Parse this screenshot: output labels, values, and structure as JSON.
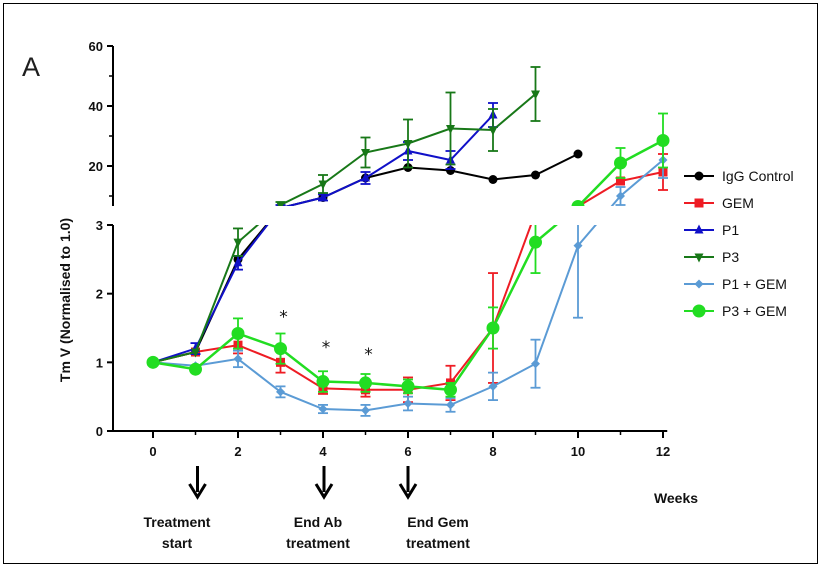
{
  "panel_label": "A",
  "chart_data": {
    "type": "line",
    "ylabel": "Tm V (Normalised to 1.0)",
    "x_unit_label": "Weeks",
    "x_ticks": [
      0,
      2,
      4,
      6,
      8,
      10,
      12
    ],
    "xlim": [
      -1,
      12.2
    ],
    "y_lower_axis": {
      "range": [
        0,
        3
      ],
      "ticks": [
        0,
        1,
        2,
        3
      ]
    },
    "y_upper_axis": {
      "range": [
        3,
        60
      ],
      "ticks": [
        20,
        40,
        60
      ]
    },
    "broken_y_axis": true,
    "legend_position": "right",
    "significance_markers": [
      {
        "x": 3,
        "y": 1.7,
        "label": "*"
      },
      {
        "x": 4,
        "y": 1.25,
        "label": "*"
      },
      {
        "x": 5,
        "y": 1.15,
        "label": "*"
      }
    ],
    "annotations": [
      {
        "x": 1,
        "lines": [
          "Treatment",
          "start"
        ]
      },
      {
        "x": 4,
        "lines": [
          "End Ab",
          "treatment"
        ]
      },
      {
        "x": 6,
        "lines": [
          "End Gem",
          "treatment"
        ]
      }
    ],
    "series": [
      {
        "name": "IgG Control",
        "color": "#000000",
        "marker": "circle",
        "x": [
          0,
          1,
          2,
          3,
          4,
          5,
          6,
          7,
          8,
          9,
          10
        ],
        "y": [
          1.0,
          1.15,
          2.5,
          6,
          9.5,
          16,
          19.5,
          18.5,
          15.5,
          17,
          24
        ],
        "err": [
          0,
          0,
          0,
          0,
          0,
          0,
          0,
          0,
          0,
          0,
          0
        ]
      },
      {
        "name": "GEM",
        "color": "#ee1c24",
        "marker": "square",
        "x": [
          0,
          1,
          2,
          3,
          4,
          5,
          6,
          7,
          8,
          9,
          10,
          11,
          12
        ],
        "y": [
          1.0,
          1.15,
          1.25,
          1.0,
          0.62,
          0.6,
          0.6,
          0.7,
          1.5,
          4.5,
          6.5,
          15,
          18
        ],
        "err": [
          0,
          0,
          0.12,
          0.15,
          0.08,
          0.1,
          0.18,
          0.25,
          0.8,
          0.7,
          0,
          0,
          6
        ]
      },
      {
        "name": "P1",
        "color": "#1010c8",
        "marker": "triangle-up",
        "x": [
          0,
          1,
          2,
          3,
          4,
          5,
          6,
          7,
          8
        ],
        "y": [
          1.0,
          1.2,
          2.45,
          6,
          9.5,
          16,
          25,
          22,
          37
        ],
        "err": [
          0,
          0.08,
          0.1,
          1,
          1,
          2,
          3,
          3,
          4
        ]
      },
      {
        "name": "P3",
        "color": "#187818",
        "marker": "triangle-down",
        "x": [
          0,
          1,
          2,
          3,
          4,
          5,
          6,
          7,
          8,
          9
        ],
        "y": [
          1.0,
          1.15,
          2.75,
          7,
          14,
          24.5,
          27.5,
          32.5,
          32,
          44
        ],
        "err": [
          0,
          0,
          0.2,
          1,
          3,
          5,
          8,
          12,
          7,
          9
        ]
      },
      {
        "name": "P1 + GEM",
        "color": "#5b9bd5",
        "marker": "diamond",
        "x": [
          0,
          1,
          2,
          3,
          4,
          5,
          6,
          7,
          8,
          9,
          10,
          11,
          12
        ],
        "y": [
          1.0,
          0.95,
          1.05,
          0.57,
          0.32,
          0.3,
          0.4,
          0.38,
          0.65,
          0.98,
          2.7,
          10,
          22
        ],
        "err": [
          0,
          0,
          0.12,
          0.08,
          0.06,
          0.08,
          0.1,
          0.1,
          0.2,
          0.35,
          1.05,
          3,
          6
        ]
      },
      {
        "name": "P3 + GEM",
        "color": "#22dd22",
        "marker": "circle",
        "x": [
          0,
          1,
          2,
          3,
          4,
          5,
          6,
          7,
          8,
          9,
          10,
          11,
          12
        ],
        "y": [
          1.0,
          0.9,
          1.42,
          1.2,
          0.72,
          0.7,
          0.65,
          0.6,
          1.5,
          2.75,
          6.5,
          21,
          28.5
        ],
        "err": [
          0,
          0,
          0.22,
          0.22,
          0.15,
          0.13,
          0.1,
          0.1,
          0.3,
          0.45,
          0,
          5,
          9
        ]
      }
    ]
  }
}
